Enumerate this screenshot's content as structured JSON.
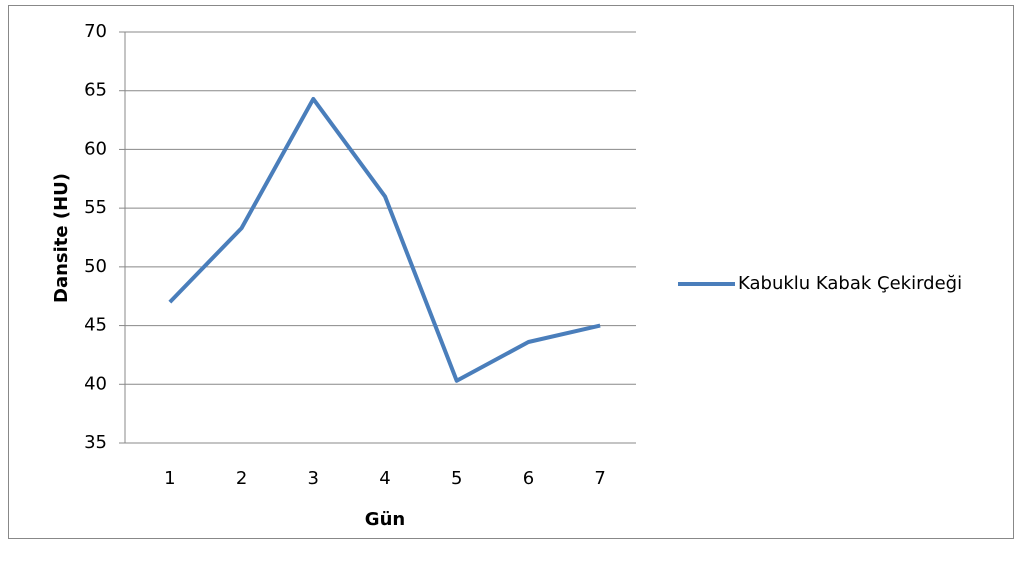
{
  "chart_data": {
    "type": "line",
    "xlabel": "Gün",
    "ylabel": "Dansite (HU)",
    "categories": [
      "1",
      "2",
      "3",
      "4",
      "5",
      "6",
      "7"
    ],
    "series": [
      {
        "name": "Kabuklu Kabak Çekirdeği",
        "color": "#4a7ebb",
        "values": [
          47,
          53.3,
          64.3,
          56,
          40.3,
          43.6,
          45
        ]
      }
    ],
    "ylim": [
      35,
      70
    ],
    "yticks": [
      35,
      40,
      45,
      50,
      55,
      60,
      65,
      70
    ],
    "grid": true,
    "legend": "right"
  }
}
